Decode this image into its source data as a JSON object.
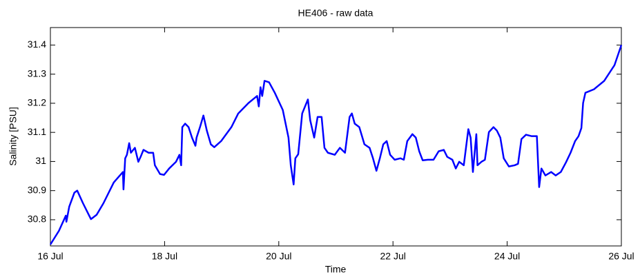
{
  "chart_data": {
    "type": "line",
    "title": "HE406 - raw data",
    "x_label": "Time",
    "y_label": "Salinity [PSU]",
    "xlim": [
      16,
      26
    ],
    "xticks": [
      {
        "value": 16,
        "label": "16 Jul"
      },
      {
        "value": 18,
        "label": "18 Jul"
      },
      {
        "value": 20,
        "label": "20 Jul"
      },
      {
        "value": 22,
        "label": "22 Jul"
      },
      {
        "value": 24,
        "label": "24 Jul"
      },
      {
        "value": 26,
        "label": "26 Jul"
      }
    ],
    "ylim": [
      30.71,
      31.46
    ],
    "yticks": [
      30.8,
      30.9,
      31,
      31.1,
      31.2,
      31.3,
      31.4
    ],
    "grid": false,
    "series": [
      {
        "color": "#0000ff",
        "x": [
          16.0,
          16.15,
          16.27,
          16.28,
          16.33,
          16.42,
          16.47,
          16.57,
          16.71,
          16.81,
          16.93,
          17.11,
          17.27,
          17.28,
          17.31,
          17.34,
          17.38,
          17.41,
          17.48,
          17.54,
          17.58,
          17.63,
          17.72,
          17.8,
          17.83,
          17.92,
          17.99,
          18.08,
          18.2,
          18.26,
          18.29,
          18.31,
          18.36,
          18.42,
          18.48,
          18.54,
          18.56,
          18.62,
          18.68,
          18.74,
          18.81,
          18.87,
          18.99,
          19.17,
          19.29,
          19.47,
          19.62,
          19.65,
          19.68,
          19.71,
          19.75,
          19.83,
          19.93,
          20.07,
          20.17,
          20.21,
          20.26,
          20.29,
          20.34,
          20.41,
          20.51,
          20.55,
          20.62,
          20.68,
          20.75,
          20.8,
          20.86,
          20.98,
          21.07,
          21.16,
          21.24,
          21.28,
          21.33,
          21.41,
          21.5,
          21.59,
          21.65,
          21.71,
          21.77,
          21.83,
          21.89,
          21.95,
          22.03,
          22.13,
          22.19,
          22.25,
          22.34,
          22.4,
          22.46,
          22.52,
          22.61,
          22.71,
          22.8,
          22.89,
          22.95,
          23.04,
          23.1,
          23.16,
          23.24,
          23.32,
          23.36,
          23.4,
          23.46,
          23.48,
          23.55,
          23.61,
          23.68,
          23.76,
          23.82,
          23.88,
          23.94,
          24.03,
          24.13,
          24.19,
          24.25,
          24.33,
          24.43,
          24.52,
          24.56,
          24.6,
          24.67,
          24.77,
          24.85,
          24.94,
          25.03,
          25.11,
          25.19,
          25.25,
          25.3,
          25.33,
          25.37,
          25.52,
          25.7,
          25.88,
          26.0
        ],
        "values": [
          30.715,
          30.762,
          30.814,
          30.793,
          30.845,
          30.893,
          30.9,
          30.857,
          30.802,
          30.817,
          30.857,
          30.928,
          30.964,
          30.904,
          31.011,
          31.023,
          31.063,
          31.03,
          31.047,
          30.999,
          31.016,
          31.04,
          31.03,
          31.03,
          30.987,
          30.957,
          30.954,
          30.976,
          30.999,
          31.023,
          30.987,
          31.118,
          31.13,
          31.118,
          31.082,
          31.054,
          31.082,
          31.118,
          31.158,
          31.106,
          31.059,
          31.049,
          31.07,
          31.118,
          31.165,
          31.201,
          31.225,
          31.189,
          31.255,
          31.225,
          31.277,
          31.272,
          31.236,
          31.177,
          31.082,
          30.987,
          30.921,
          31.011,
          31.025,
          31.165,
          31.213,
          31.142,
          31.082,
          31.153,
          31.153,
          31.047,
          31.03,
          31.023,
          31.047,
          31.03,
          31.153,
          31.165,
          31.13,
          31.118,
          31.059,
          31.047,
          31.011,
          30.968,
          31.011,
          31.059,
          31.07,
          31.023,
          31.006,
          31.011,
          31.006,
          31.07,
          31.094,
          31.082,
          31.035,
          31.004,
          31.006,
          31.006,
          31.035,
          31.04,
          31.016,
          31.006,
          30.976,
          30.999,
          30.987,
          31.111,
          31.082,
          30.964,
          31.094,
          30.987,
          30.999,
          31.006,
          31.101,
          31.118,
          31.106,
          31.082,
          31.011,
          30.983,
          30.987,
          30.992,
          31.077,
          31.092,
          31.087,
          31.087,
          30.912,
          30.976,
          30.952,
          30.964,
          30.952,
          30.964,
          30.997,
          31.03,
          31.07,
          31.087,
          31.115,
          31.201,
          31.236,
          31.248,
          31.277,
          31.331,
          31.4
        ]
      }
    ]
  }
}
